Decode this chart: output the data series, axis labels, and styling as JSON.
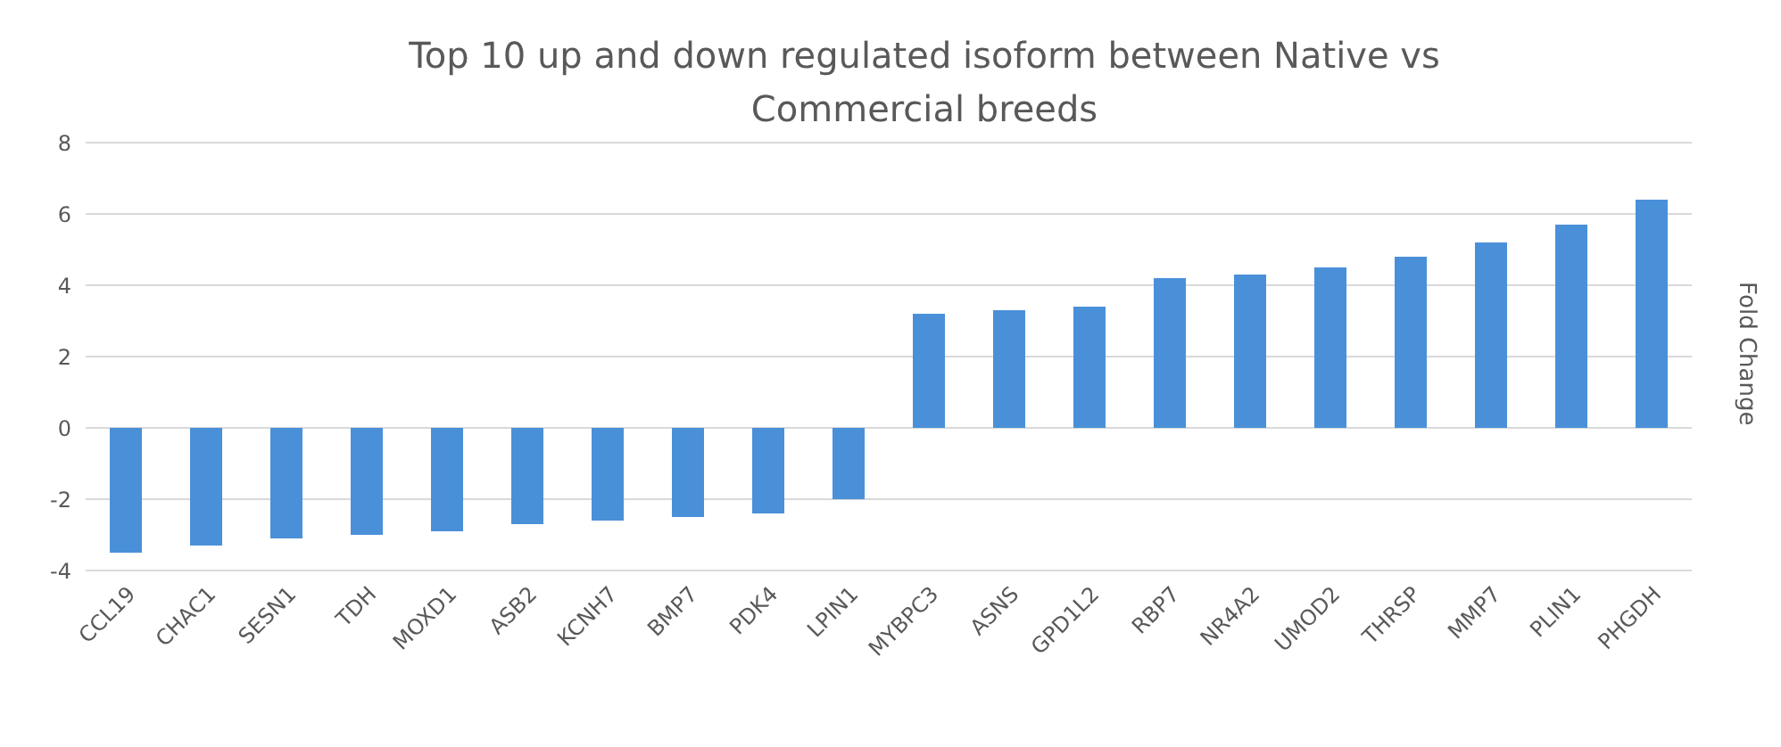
{
  "chart_data": {
    "type": "bar",
    "title": "Top 10 up and down regulated isoform between Native vs Commercial breeds",
    "ylabel": "Fold Change",
    "categories": [
      "CCL19",
      "CHAC1",
      "SESN1",
      "TDH",
      "MOXD1",
      "ASB2",
      "KCNH7",
      "BMP7",
      "PDK4",
      "LPIN1",
      "MYBPC3",
      "ASNS",
      "GPD1L2",
      "RBP7",
      "NR4A2",
      "UMOD2",
      "THRSP",
      "MMP7",
      "PLIN1",
      "PHGDH"
    ],
    "values": [
      -3.5,
      -3.3,
      -3.1,
      -3.0,
      -2.9,
      -2.7,
      -2.6,
      -2.5,
      -2.4,
      -2.0,
      3.2,
      3.3,
      3.4,
      4.2,
      4.3,
      4.5,
      4.8,
      5.2,
      5.7,
      6.4
    ],
    "color": "#4a90d9",
    "ylim": [
      -4,
      8
    ],
    "yticks": [
      -4,
      -2,
      0,
      2,
      4,
      6,
      8
    ],
    "grid": "y"
  }
}
